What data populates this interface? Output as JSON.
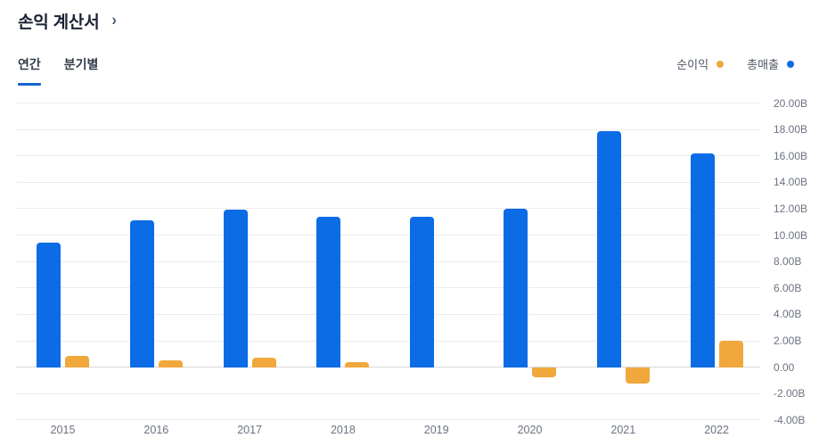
{
  "header": {
    "title": "손익 계산서",
    "chevron": "›"
  },
  "tabs": [
    {
      "label": "연간",
      "active": true
    },
    {
      "label": "분기별",
      "active": false
    }
  ],
  "legend": [
    {
      "label": "순이익",
      "color": "#f0a83d"
    },
    {
      "label": "총매출",
      "color": "#0b6ce5"
    }
  ],
  "chart_data": {
    "type": "bar",
    "title": "손익 계산서 (연간)",
    "categories": [
      "2015",
      "2016",
      "2017",
      "2018",
      "2019",
      "2020",
      "2021",
      "2022"
    ],
    "series": [
      {
        "name": "총매출",
        "color": "#0b6ce5",
        "values": [
          9.4,
          11.1,
          11.9,
          11.4,
          11.4,
          12.0,
          17.9,
          16.2
        ]
      },
      {
        "name": "순이익",
        "color": "#f0a83d",
        "values": [
          0.85,
          0.55,
          0.7,
          0.4,
          0.0,
          -0.75,
          -1.25,
          2.0
        ]
      }
    ],
    "unit": "B",
    "ylim": [
      -4,
      20
    ],
    "y_tick_values": [
      20,
      18,
      16,
      14,
      12,
      10,
      8,
      6,
      4,
      2,
      0,
      -2,
      -4
    ],
    "y_tick_labels": [
      "20.00B",
      "18.00B",
      "16.00B",
      "14.00B",
      "12.00B",
      "10.00B",
      "8.00B",
      "6.00B",
      "4.00B",
      "2.00B",
      "0.00",
      "-2.00B",
      "-4.00B"
    ],
    "grid": true,
    "legend_position": "top-right",
    "y_axis_side": "right"
  }
}
